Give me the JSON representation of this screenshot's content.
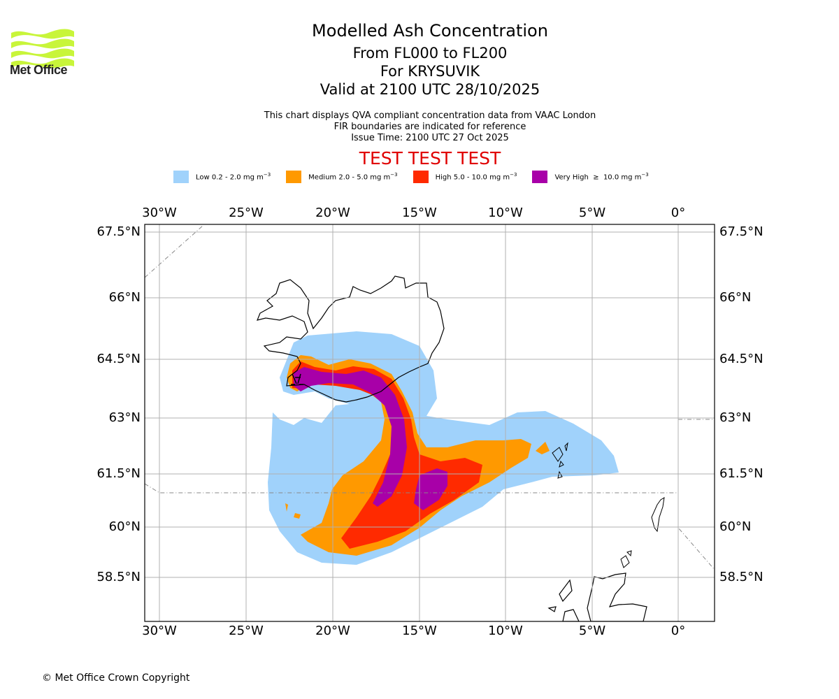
{
  "logo": {
    "text": "Met Office",
    "color": "#c8f53a"
  },
  "title": {
    "line1": "Modelled Ash Concentration",
    "line2": "From FL000 to FL200",
    "line3": "For KRYSUVIK",
    "line4": "Valid at 2100 UTC 28/10/2025"
  },
  "subtitle": {
    "line1": "This chart displays QVA compliant concentration data from VAAC London",
    "line2": "FIR boundaries are indicated for reference",
    "line3": "Issue Time: 2100 UTC 27 Oct 2025"
  },
  "test_banner": "TEST TEST TEST",
  "legend": [
    {
      "label": "Low 0.2 - 2.0 mg m",
      "sup": "−3",
      "color": "#a0d2fb"
    },
    {
      "label": "Medium 2.0 - 5.0 mg m",
      "sup": "−3",
      "color": "#ff9900"
    },
    {
      "label": "High 5.0 - 10.0 mg m",
      "sup": "−3",
      "color": "#ff2a00"
    },
    {
      "label": "Very High  ≥  10.0 mg m",
      "sup": "−3",
      "color": "#a800a8"
    }
  ],
  "map": {
    "lon_ticks": [
      "30°W",
      "25°W",
      "20°W",
      "15°W",
      "10°W",
      "5°W",
      "0°"
    ],
    "lat_ticks": [
      "67.5°N",
      "66°N",
      "64.5°N",
      "63°N",
      "61.5°N",
      "60°N",
      "58.5°N"
    ],
    "lon_values": [
      -30,
      -25,
      -20,
      -15,
      -10,
      -5,
      0
    ],
    "lat_values": [
      67.5,
      66,
      64.5,
      63,
      61.5,
      60,
      58.5
    ],
    "extent": {
      "lon_min": -30.85,
      "lon_max": 2.1,
      "lat_min": 57.3,
      "lat_max": 67.7
    },
    "volcano": "KRYSUVIK",
    "grid_color": "#b0b0b0",
    "fir_color": "#888888"
  },
  "copyright": "© Met Office Crown Copyright"
}
